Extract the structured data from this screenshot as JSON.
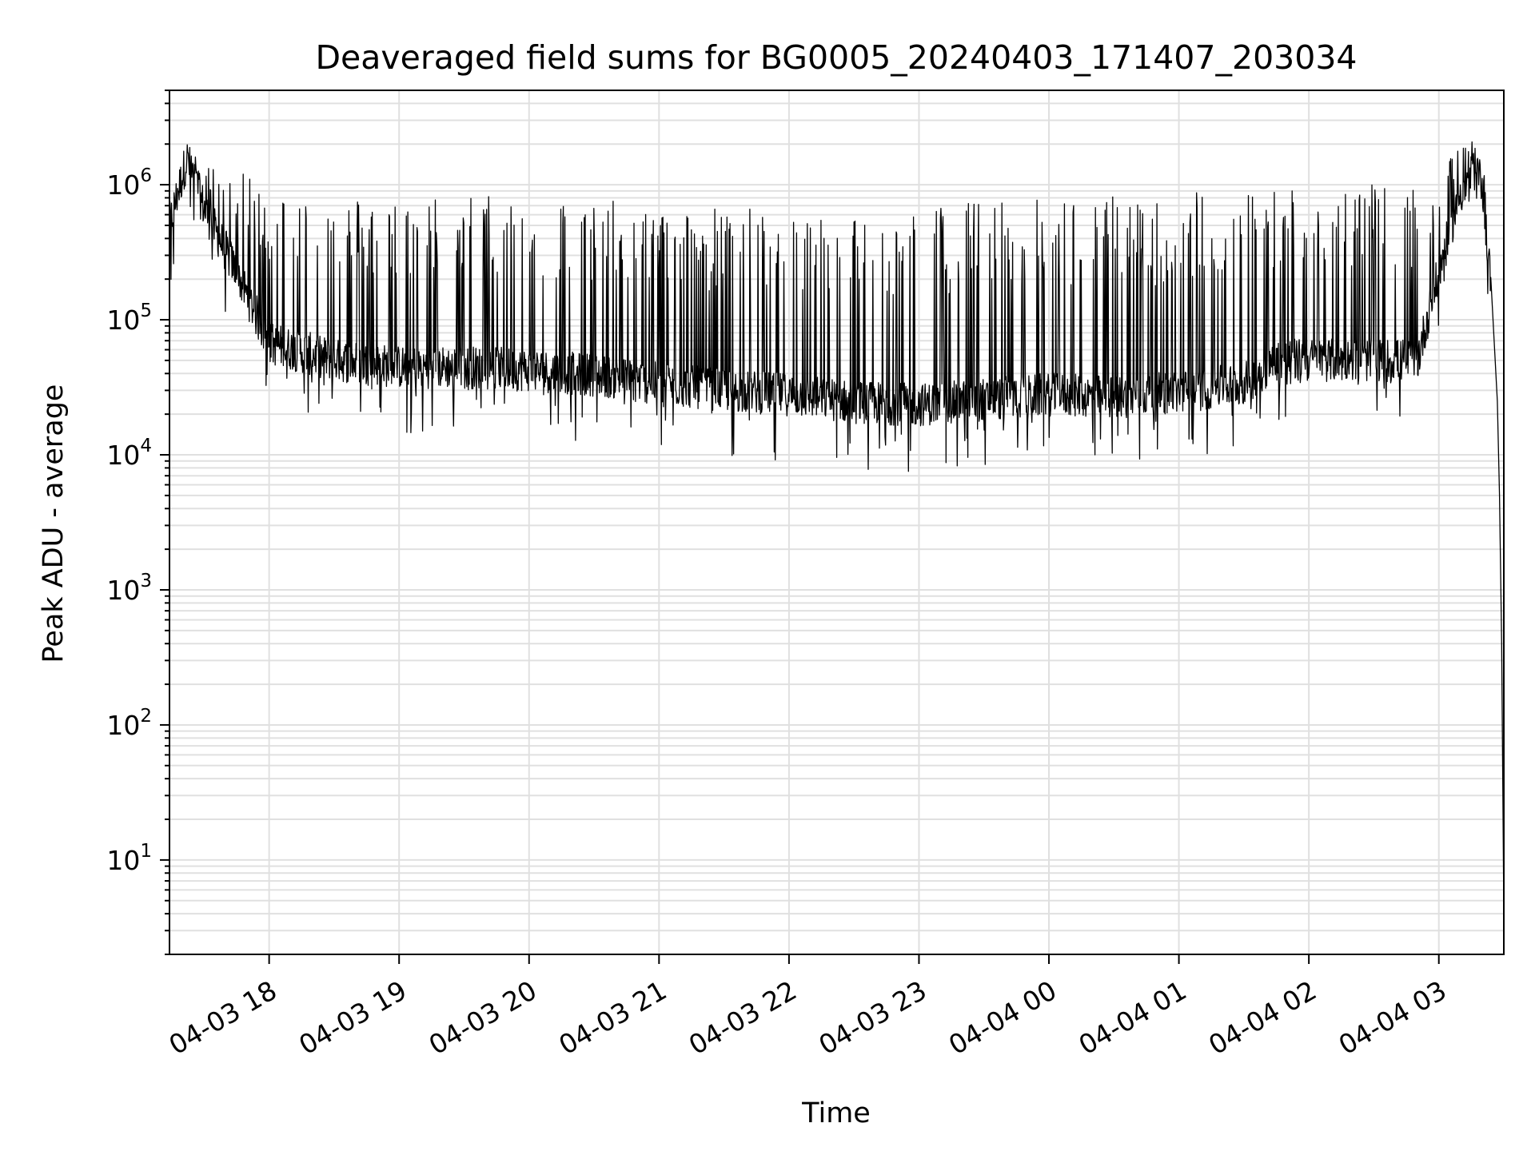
{
  "chart_data": {
    "type": "line",
    "title": "Deaveraged field sums for BG0005_20240403_171407_203034",
    "xlabel": "Time",
    "ylabel": "Peak ADU - average",
    "yscale": "log",
    "ylim": [
      2,
      5000000
    ],
    "xlim": [
      "04-03 17:14",
      "04-04 03:30"
    ],
    "grid": true,
    "line_color": "#000000",
    "grid_color": "#e0e0e0",
    "x_ticks": [
      {
        "label": "04-03 18",
        "t": "04-03 18:00"
      },
      {
        "label": "04-03 19",
        "t": "04-03 19:00"
      },
      {
        "label": "04-03 20",
        "t": "04-03 20:00"
      },
      {
        "label": "04-03 21",
        "t": "04-03 21:00"
      },
      {
        "label": "04-03 22",
        "t": "04-03 22:00"
      },
      {
        "label": "04-03 23",
        "t": "04-03 23:00"
      },
      {
        "label": "04-04 00",
        "t": "04-04 00:00"
      },
      {
        "label": "04-04 01",
        "t": "04-04 01:00"
      },
      {
        "label": "04-04 02",
        "t": "04-04 02:00"
      },
      {
        "label": "04-04 03",
        "t": "04-04 03:00"
      }
    ],
    "y_ticks": [
      {
        "base": "10",
        "exp": "1",
        "value": 10
      },
      {
        "base": "10",
        "exp": "2",
        "value": 100
      },
      {
        "base": "10",
        "exp": "3",
        "value": 1000
      },
      {
        "base": "10",
        "exp": "4",
        "value": 10000
      },
      {
        "base": "10",
        "exp": "5",
        "value": 100000
      },
      {
        "base": "10",
        "exp": "6",
        "value": 1000000
      }
    ],
    "series": [
      {
        "envelope": [
          {
            "t": "04-03 17:14",
            "base": 450000,
            "peak": 600000
          },
          {
            "t": "04-03 17:22",
            "base": 1400000,
            "peak": 1900000
          },
          {
            "t": "04-03 17:30",
            "base": 600000,
            "peak": 1400000
          },
          {
            "t": "04-03 17:45",
            "base": 200000,
            "peak": 1300000
          },
          {
            "t": "04-03 18:00",
            "base": 60000,
            "peak": 900000
          },
          {
            "t": "04-03 18:30",
            "base": 45000,
            "peak": 850000
          },
          {
            "t": "04-03 19:00",
            "base": 40000,
            "peak": 800000
          },
          {
            "t": "04-03 19:30",
            "base": 40000,
            "peak": 900000
          },
          {
            "t": "04-03 20:00",
            "base": 38000,
            "peak": 850000
          },
          {
            "t": "04-03 20:30",
            "base": 35000,
            "peak": 800000
          },
          {
            "t": "04-03 21:00",
            "base": 30000,
            "peak": 700000
          },
          {
            "t": "04-03 21:30",
            "base": 27000,
            "peak": 700000
          },
          {
            "t": "04-03 22:00",
            "base": 25000,
            "peak": 650000
          },
          {
            "t": "04-03 22:30",
            "base": 22000,
            "peak": 600000
          },
          {
            "t": "04-03 23:00",
            "base": 21000,
            "peak": 700000
          },
          {
            "t": "04-03 23:30",
            "base": 23000,
            "peak": 800000
          },
          {
            "t": "04-04 00:00",
            "base": 25000,
            "peak": 800000
          },
          {
            "t": "04-04 00:30",
            "base": 24000,
            "peak": 850000
          },
          {
            "t": "04-04 01:00",
            "base": 26000,
            "peak": 900000
          },
          {
            "t": "04-04 01:30",
            "base": 30000,
            "peak": 950000
          },
          {
            "t": "04-04 01:45",
            "base": 45000,
            "peak": 1000000
          },
          {
            "t": "04-04 02:00",
            "base": 45000,
            "peak": 1050000
          },
          {
            "t": "04-04 02:30",
            "base": 45000,
            "peak": 1000000
          },
          {
            "t": "04-04 02:50",
            "base": 45000,
            "peak": 900000
          },
          {
            "t": "04-04 03:00",
            "base": 200000,
            "peak": 900000
          },
          {
            "t": "04-04 03:10",
            "base": 800000,
            "peak": 2500000
          },
          {
            "t": "04-04 03:20",
            "base": 1000000,
            "peak": 1800000
          },
          {
            "t": "04-04 03:25",
            "base": 100000,
            "peak": 200000
          },
          {
            "t": "04-04 03:27",
            "base": 25000,
            "peak": 25000
          },
          {
            "t": "04-04 03:28",
            "base": 5000,
            "peak": 5000
          },
          {
            "t": "04-04 03:29",
            "base": 400,
            "peak": 400
          },
          {
            "t": "04-04 03:30",
            "base": 4,
            "peak": 4
          }
        ]
      }
    ]
  }
}
